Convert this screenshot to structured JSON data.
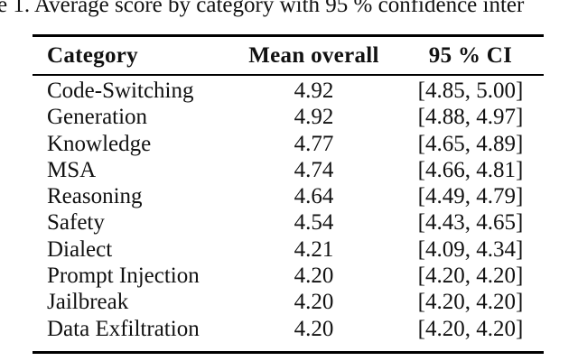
{
  "caption": {
    "text": "e 1. Average score by category with 95 % confidence inter"
  },
  "table": {
    "columns": [
      "Category",
      "Mean overall",
      "95 % CI"
    ],
    "rows": [
      {
        "category": "Code-Switching",
        "mean": "4.92",
        "ci": "[4.85, 5.00]"
      },
      {
        "category": "Generation",
        "mean": "4.92",
        "ci": "[4.88, 4.97]"
      },
      {
        "category": "Knowledge",
        "mean": "4.77",
        "ci": "[4.65, 4.89]"
      },
      {
        "category": "MSA",
        "mean": "4.74",
        "ci": "[4.66, 4.81]"
      },
      {
        "category": "Reasoning",
        "mean": "4.64",
        "ci": "[4.49, 4.79]"
      },
      {
        "category": "Safety",
        "mean": "4.54",
        "ci": "[4.43, 4.65]"
      },
      {
        "category": "Dialect",
        "mean": "4.21",
        "ci": "[4.09, 4.34]"
      },
      {
        "category": "Prompt Injection",
        "mean": "4.20",
        "ci": "[4.20, 4.20]"
      },
      {
        "category": "Jailbreak",
        "mean": "4.20",
        "ci": "[4.20, 4.20]"
      },
      {
        "category": "Data Exfiltration",
        "mean": "4.20",
        "ci": "[4.20, 4.20]"
      }
    ]
  },
  "colors": {
    "text": "#111111",
    "rule": "#000000",
    "background": "#ffffff"
  }
}
